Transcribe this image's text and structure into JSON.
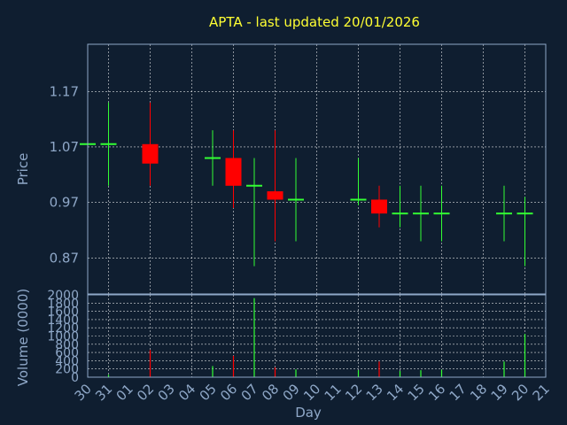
{
  "chart_data": {
    "type": "candlestick",
    "title": "APTA - last updated 20/01/2026",
    "xlabel": "Day",
    "price_panel": {
      "ylabel": "Price",
      "ylim": [
        0.805,
        1.255
      ],
      "yticks": [
        "0.87",
        "0.97",
        "1.07",
        "1.17"
      ],
      "ytick_values": [
        0.87,
        0.97,
        1.07,
        1.17
      ],
      "grid": true
    },
    "volume_panel": {
      "ylabel": "Volume (0000)",
      "ylim": [
        0,
        2000
      ],
      "yticks": [
        "0",
        "200",
        "400",
        "600",
        "800",
        "1000",
        "1200",
        "1400",
        "1600",
        "1800",
        "2000"
      ],
      "ytick_values": [
        0,
        200,
        400,
        600,
        800,
        1000,
        1200,
        1400,
        1600,
        1800,
        2000
      ],
      "grid": true
    },
    "x_ticks": [
      "30",
      "31",
      "01",
      "02",
      "03",
      "04",
      "05",
      "06",
      "07",
      "08",
      "09",
      "10",
      "11",
      "12",
      "13",
      "14",
      "15",
      "16",
      "17",
      "18",
      "19",
      "20",
      "21"
    ],
    "vertical_grid_ticks": [
      "31",
      "02",
      "04",
      "06",
      "08",
      "10",
      "12",
      "14",
      "16",
      "18",
      "20"
    ],
    "candles": [
      {
        "day": "30",
        "open": 1.075,
        "high": 1.075,
        "low": 1.075,
        "close": 1.075,
        "volume": 0
      },
      {
        "day": "31",
        "open": 1.075,
        "high": 1.15,
        "low": 1.0,
        "close": 1.075,
        "volume": 60
      },
      {
        "day": "02",
        "open": 1.075,
        "high": 1.15,
        "low": 1.0,
        "close": 1.04,
        "volume": 660
      },
      {
        "day": "05",
        "open": 1.05,
        "high": 1.1,
        "low": 1.0,
        "close": 1.05,
        "volume": 270
      },
      {
        "day": "06",
        "open": 1.05,
        "high": 1.1,
        "low": 0.96,
        "close": 1.0,
        "volume": 520
      },
      {
        "day": "07",
        "open": 1.0,
        "high": 1.05,
        "low": 0.855,
        "close": 1.0,
        "volume": 1920
      },
      {
        "day": "08",
        "open": 0.99,
        "high": 1.1,
        "low": 0.9,
        "close": 0.975,
        "volume": 240
      },
      {
        "day": "09",
        "open": 0.975,
        "high": 1.05,
        "low": 0.9,
        "close": 0.975,
        "volume": 190
      },
      {
        "day": "12",
        "open": 0.975,
        "high": 1.05,
        "low": 0.965,
        "close": 0.975,
        "volume": 170
      },
      {
        "day": "13",
        "open": 0.975,
        "high": 1.0,
        "low": 0.925,
        "close": 0.95,
        "volume": 380
      },
      {
        "day": "14",
        "open": 0.95,
        "high": 1.0,
        "low": 0.925,
        "close": 0.95,
        "volume": 150
      },
      {
        "day": "15",
        "open": 0.95,
        "high": 1.0,
        "low": 0.9,
        "close": 0.95,
        "volume": 170
      },
      {
        "day": "16",
        "open": 0.95,
        "high": 1.0,
        "low": 0.9,
        "close": 0.95,
        "volume": 180
      },
      {
        "day": "19",
        "open": 0.95,
        "high": 1.0,
        "low": 0.9,
        "close": 0.95,
        "volume": 380
      },
      {
        "day": "20",
        "open": 0.95,
        "high": 0.98,
        "low": 0.855,
        "close": 0.95,
        "volume": 1050
      }
    ],
    "colors": {
      "background": "#0f1e30",
      "up": "#33ff33",
      "down": "#ff0000",
      "title": "#ffff33",
      "axis": "#8fa8c8",
      "grid": "#ffffff"
    }
  }
}
